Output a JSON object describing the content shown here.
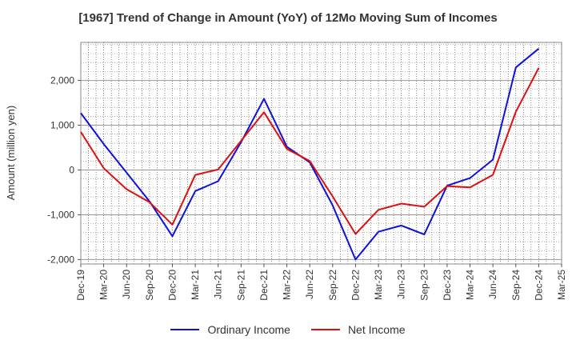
{
  "chart_data": {
    "type": "line",
    "title": "[1967]  Trend of Change in Amount (YoY) of 12Mo Moving Sum of Incomes",
    "ylabel": "Amount (million yen)",
    "xlabel": "",
    "ylim": [
      -2100,
      2850
    ],
    "yticks": [
      -2000,
      -1000,
      0,
      1000,
      2000
    ],
    "ytick_labels": [
      "-2,000",
      "-1,000",
      "0",
      "1,000",
      "2,000"
    ],
    "categories": [
      "Dec-19",
      "Mar-20",
      "Jun-20",
      "Sep-20",
      "Dec-20",
      "Mar-21",
      "Jun-21",
      "Sep-21",
      "Dec-21",
      "Mar-22",
      "Jun-22",
      "Sep-22",
      "Dec-22",
      "Mar-23",
      "Jun-23",
      "Sep-23",
      "Dec-23",
      "Mar-24",
      "Jun-24",
      "Sep-24",
      "Dec-24",
      "Mar-25"
    ],
    "grid": true,
    "legend_position": "bottom",
    "series": [
      {
        "name": "Ordinary Income",
        "color": "#1010dd",
        "values": [
          1270,
          580,
          -60,
          -700,
          -1480,
          -470,
          -250,
          620,
          1590,
          520,
          170,
          -790,
          -2000,
          -1380,
          -1240,
          -1440,
          -350,
          -180,
          230,
          2290,
          2710,
          null
        ]
      },
      {
        "name": "Net Income",
        "color": "#dd1010",
        "values": [
          850,
          40,
          -430,
          -720,
          -1220,
          -110,
          10,
          650,
          1290,
          470,
          200,
          -590,
          -1430,
          -890,
          -750,
          -820,
          -360,
          -390,
          -110,
          1300,
          2280,
          null
        ]
      }
    ]
  }
}
